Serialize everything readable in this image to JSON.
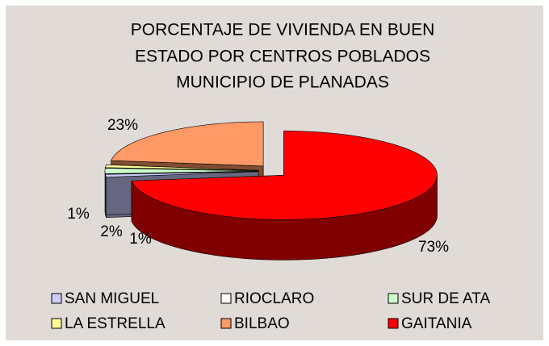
{
  "chart_data": {
    "type": "pie3d",
    "title": [
      "PORCENTAJE DE VIVIENDA EN BUEN",
      "ESTADO POR CENTROS POBLADOS",
      "MUNICIPIO DE PLANADAS"
    ],
    "categories": [
      "SAN MIGUEL",
      "RIOCLARO",
      "SUR DE ATA",
      "LA ESTRELLA",
      "BILBAO",
      "GAITANIA"
    ],
    "values": [
      1,
      0,
      2,
      1,
      23,
      73
    ],
    "value_labels": [
      "1%",
      null,
      "2%",
      "1%",
      "23%",
      "73%"
    ],
    "colors": [
      "#ccccff",
      "#ffffff",
      "#ccffcc",
      "#ffff99",
      "#ff9966",
      "#ff0000"
    ],
    "legend": "bottom"
  }
}
